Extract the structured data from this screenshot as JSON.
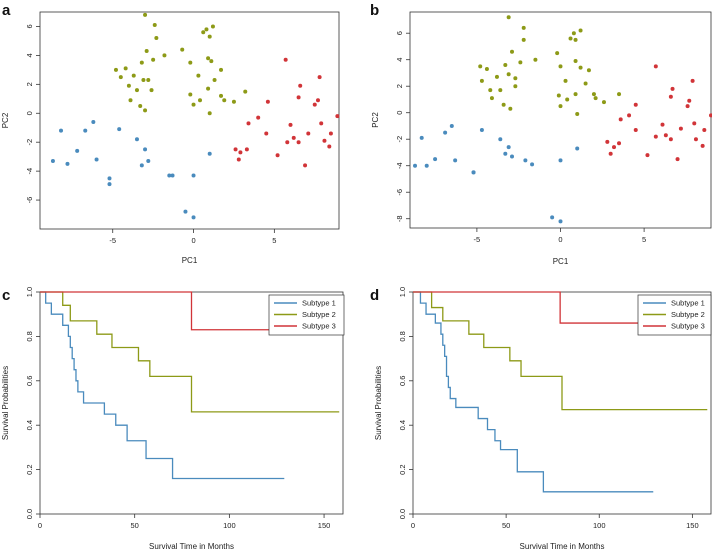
{
  "colors": {
    "subtype1": "#4a8bbd",
    "subtype2": "#8d9a17",
    "subtype3": "#d13438",
    "axis": "#333333"
  },
  "chart_data": [
    {
      "panel": "a",
      "type": "scatter",
      "xlabel": "PC1",
      "ylabel": "PC2",
      "xlim": [
        -9.5,
        9
      ],
      "ylim": [
        -8,
        7
      ],
      "xticks": [
        -5,
        0,
        5
      ],
      "yticks": [
        -6,
        -4,
        -2,
        0,
        2,
        4,
        6
      ],
      "series": [
        {
          "name": "Subtype 1",
          "color_key": "subtype1",
          "points": [
            [
              -8.7,
              -3.3
            ],
            [
              -8.2,
              -1.2
            ],
            [
              -7.8,
              -3.5
            ],
            [
              -7.2,
              -2.6
            ],
            [
              -6.7,
              -1.2
            ],
            [
              -6.2,
              -0.6
            ],
            [
              -6,
              -3.2
            ],
            [
              -5.2,
              -4.5
            ],
            [
              -5.2,
              -4.9
            ],
            [
              -4.6,
              -1.1
            ],
            [
              -3.5,
              -1.8
            ],
            [
              -3.2,
              -3.6
            ],
            [
              -3,
              -2.5
            ],
            [
              -2.8,
              -3.3
            ],
            [
              -1.5,
              -4.3
            ],
            [
              -1.3,
              -4.3
            ],
            [
              -0.5,
              -6.8
            ],
            [
              0,
              -7.2
            ],
            [
              0,
              -4.3
            ],
            [
              1,
              -2.8
            ]
          ]
        },
        {
          "name": "Subtype 2",
          "color_key": "subtype2",
          "points": [
            [
              -4.8,
              3
            ],
            [
              -4.5,
              2.5
            ],
            [
              -4.2,
              3.1
            ],
            [
              -4,
              1.9
            ],
            [
              -3.9,
              0.9
            ],
            [
              -3.7,
              2.6
            ],
            [
              -3.5,
              1.6
            ],
            [
              -3.3,
              0.5
            ],
            [
              -3.2,
              3.5
            ],
            [
              -3.1,
              2.3
            ],
            [
              -3,
              6.8
            ],
            [
              -3,
              0.2
            ],
            [
              -2.9,
              4.3
            ],
            [
              -2.8,
              2.3
            ],
            [
              -2.6,
              1.6
            ],
            [
              -2.5,
              3.7
            ],
            [
              -2.4,
              6.1
            ],
            [
              -2.3,
              5.2
            ],
            [
              -1.8,
              4
            ],
            [
              -0.7,
              4.4
            ],
            [
              -0.2,
              3.5
            ],
            [
              -0.2,
              1.3
            ],
            [
              0,
              0.6
            ],
            [
              0.3,
              2.6
            ],
            [
              0.4,
              0.9
            ],
            [
              0.6,
              5.6
            ],
            [
              0.8,
              5.8
            ],
            [
              0.9,
              3.8
            ],
            [
              0.9,
              1.7
            ],
            [
              1,
              5.3
            ],
            [
              1,
              0
            ],
            [
              1.1,
              3.6
            ],
            [
              1.2,
              6
            ],
            [
              1.3,
              2.3
            ],
            [
              1.7,
              3
            ],
            [
              1.7,
              1.2
            ],
            [
              1.9,
              0.9
            ],
            [
              2.5,
              0.8
            ],
            [
              3.2,
              1.5
            ]
          ]
        },
        {
          "name": "Subtype 3",
          "color_key": "subtype3",
          "points": [
            [
              2.6,
              -2.5
            ],
            [
              2.8,
              -3.2
            ],
            [
              2.9,
              -2.7
            ],
            [
              3.3,
              -2.5
            ],
            [
              3.4,
              -0.7
            ],
            [
              4,
              -0.3
            ],
            [
              4.6,
              0.8
            ],
            [
              4.5,
              -1.4
            ],
            [
              5.2,
              -2.9
            ],
            [
              5.7,
              3.7
            ],
            [
              5.8,
              -2
            ],
            [
              6,
              -0.8
            ],
            [
              6.2,
              -1.7
            ],
            [
              6.5,
              1.1
            ],
            [
              6.5,
              -2
            ],
            [
              6.6,
              1.9
            ],
            [
              6.9,
              -3.6
            ],
            [
              7.1,
              -1.4
            ],
            [
              7.5,
              0.6
            ],
            [
              7.7,
              0.9
            ],
            [
              7.8,
              2.5
            ],
            [
              7.9,
              -0.7
            ],
            [
              8.1,
              -1.9
            ],
            [
              8.4,
              -2.3
            ],
            [
              8.5,
              -1.4
            ],
            [
              8.9,
              -0.2
            ]
          ]
        }
      ]
    },
    {
      "panel": "b",
      "type": "scatter",
      "xlabel": "PC1",
      "ylabel": "PC2",
      "xlim": [
        -9,
        9
      ],
      "ylim": [
        -8.7,
        7.6
      ],
      "xticks": [
        -5,
        0,
        5
      ],
      "yticks": [
        -8,
        -6,
        -4,
        -2,
        0,
        2,
        4,
        6
      ],
      "series": [
        {
          "name": "Subtype 1",
          "color_key": "subtype1",
          "points": [
            [
              -8.7,
              -4
            ],
            [
              -8.3,
              -1.9
            ],
            [
              -8,
              -4
            ],
            [
              -7.5,
              -3.5
            ],
            [
              -6.9,
              -1.5
            ],
            [
              -6.5,
              -1
            ],
            [
              -6.3,
              -3.6
            ],
            [
              -5.2,
              -4.5
            ],
            [
              -5.2,
              -4.5
            ],
            [
              -4.7,
              -1.3
            ],
            [
              -3.6,
              -2
            ],
            [
              -3.3,
              -3.1
            ],
            [
              -3.1,
              -2.6
            ],
            [
              -2.9,
              -3.3
            ],
            [
              -2.1,
              -3.6
            ],
            [
              -1.7,
              -3.9
            ],
            [
              -0.5,
              -7.9
            ],
            [
              0,
              -8.2
            ],
            [
              0,
              -3.6
            ],
            [
              1,
              -2.7
            ]
          ]
        },
        {
          "name": "Subtype 2",
          "color_key": "subtype2",
          "points": [
            [
              -4.8,
              3.5
            ],
            [
              -4.7,
              2.4
            ],
            [
              -4.4,
              3.3
            ],
            [
              -4.2,
              1.7
            ],
            [
              -4.1,
              1.1
            ],
            [
              -3.8,
              2.7
            ],
            [
              -3.6,
              1.7
            ],
            [
              -3.4,
              0.6
            ],
            [
              -3.3,
              3.6
            ],
            [
              -3.1,
              2.9
            ],
            [
              -3.1,
              7.2
            ],
            [
              -3,
              0.3
            ],
            [
              -2.9,
              4.6
            ],
            [
              -2.7,
              2.6
            ],
            [
              -2.7,
              2
            ],
            [
              -2.4,
              3.8
            ],
            [
              -2.2,
              6.4
            ],
            [
              -2.2,
              5.5
            ],
            [
              -1.5,
              4
            ],
            [
              -0.2,
              4.5
            ],
            [
              0,
              3.5
            ],
            [
              -0.1,
              1.3
            ],
            [
              0,
              0.5
            ],
            [
              0.3,
              2.4
            ],
            [
              0.4,
              1
            ],
            [
              0.6,
              5.6
            ],
            [
              0.8,
              6
            ],
            [
              0.9,
              3.9
            ],
            [
              0.9,
              1.4
            ],
            [
              0.9,
              5.5
            ],
            [
              1,
              -0.1
            ],
            [
              1.2,
              3.4
            ],
            [
              1.2,
              6.2
            ],
            [
              1.5,
              2.2
            ],
            [
              1.7,
              3.2
            ],
            [
              2,
              1.4
            ],
            [
              2.1,
              1.1
            ],
            [
              2.6,
              0.8
            ],
            [
              3.5,
              1.4
            ]
          ]
        },
        {
          "name": "Subtype 3",
          "color_key": "subtype3",
          "points": [
            [
              2.8,
              -2.2
            ],
            [
              3,
              -3.1
            ],
            [
              3.2,
              -2.6
            ],
            [
              3.5,
              -2.3
            ],
            [
              3.6,
              -0.5
            ],
            [
              4.1,
              -0.2
            ],
            [
              4.5,
              0.6
            ],
            [
              4.5,
              -1.3
            ],
            [
              5.2,
              -3.2
            ],
            [
              5.7,
              3.5
            ],
            [
              5.7,
              -1.8
            ],
            [
              6.1,
              -0.9
            ],
            [
              6.3,
              -1.7
            ],
            [
              6.6,
              1.2
            ],
            [
              6.6,
              -2
            ],
            [
              6.7,
              1.8
            ],
            [
              7,
              -3.5
            ],
            [
              7.2,
              -1.2
            ],
            [
              7.6,
              0.5
            ],
            [
              7.7,
              0.9
            ],
            [
              7.9,
              2.4
            ],
            [
              8,
              -0.8
            ],
            [
              8.1,
              -2
            ],
            [
              8.5,
              -2.5
            ],
            [
              8.6,
              -1.3
            ],
            [
              9,
              -0.2
            ]
          ]
        }
      ]
    },
    {
      "panel": "c",
      "type": "line",
      "subtype": "kaplan-meier",
      "xlabel": "Survival Time in Months",
      "ylabel": "Survival Probabilities",
      "xlim": [
        0,
        160
      ],
      "ylim": [
        0,
        1
      ],
      "xticks": [
        0,
        50,
        100,
        150
      ],
      "yticks": [
        0.0,
        0.2,
        0.4,
        0.6,
        0.8,
        1.0
      ],
      "legend": [
        "Subtype 1",
        "Subtype 2",
        "Subtype 3"
      ],
      "series": [
        {
          "name": "Subtype 1",
          "color_key": "subtype1",
          "steps": [
            [
              0,
              1
            ],
            [
              3,
              0.95
            ],
            [
              6,
              0.9
            ],
            [
              12,
              0.85
            ],
            [
              15,
              0.8
            ],
            [
              16,
              0.75
            ],
            [
              17,
              0.7
            ],
            [
              18,
              0.65
            ],
            [
              19,
              0.6
            ],
            [
              20,
              0.55
            ],
            [
              23,
              0.5
            ],
            [
              34,
              0.45
            ],
            [
              40,
              0.4
            ],
            [
              46,
              0.33
            ],
            [
              56,
              0.25
            ],
            [
              70,
              0.16
            ],
            [
              129,
              0.16
            ]
          ]
        },
        {
          "name": "Subtype 2",
          "color_key": "subtype2",
          "steps": [
            [
              0,
              1
            ],
            [
              12,
              0.94
            ],
            [
              16,
              0.87
            ],
            [
              30,
              0.81
            ],
            [
              38,
              0.75
            ],
            [
              52,
              0.69
            ],
            [
              58,
              0.62
            ],
            [
              80,
              0.46
            ],
            [
              158,
              0.46
            ]
          ]
        },
        {
          "name": "Subtype 3",
          "color_key": "subtype3",
          "steps": [
            [
              0,
              1
            ],
            [
              80,
              0.83
            ],
            [
              124,
              0.83
            ]
          ]
        }
      ]
    },
    {
      "panel": "d",
      "type": "line",
      "subtype": "kaplan-meier",
      "xlabel": "Survival Time in Months",
      "ylabel": "Survival Probabilities",
      "xlim": [
        0,
        160
      ],
      "ylim": [
        0,
        1
      ],
      "xticks": [
        0,
        50,
        100,
        150
      ],
      "yticks": [
        0.0,
        0.2,
        0.4,
        0.6,
        0.8,
        1.0
      ],
      "legend": [
        "Subtype 1",
        "Subtype 2",
        "Subtype 3"
      ],
      "series": [
        {
          "name": "Subtype 1",
          "color_key": "subtype1",
          "steps": [
            [
              0,
              1
            ],
            [
              4,
              0.95
            ],
            [
              7,
              0.9
            ],
            [
              12,
              0.86
            ],
            [
              15,
              0.81
            ],
            [
              16,
              0.76
            ],
            [
              17,
              0.71
            ],
            [
              18,
              0.62
            ],
            [
              19,
              0.57
            ],
            [
              20,
              0.52
            ],
            [
              23,
              0.48
            ],
            [
              35,
              0.43
            ],
            [
              40,
              0.38
            ],
            [
              44,
              0.33
            ],
            [
              47,
              0.29
            ],
            [
              56,
              0.19
            ],
            [
              70,
              0.1
            ],
            [
              129,
              0.1
            ]
          ]
        },
        {
          "name": "Subtype 2",
          "color_key": "subtype2",
          "steps": [
            [
              0,
              1
            ],
            [
              10,
              0.93
            ],
            [
              16,
              0.87
            ],
            [
              30,
              0.81
            ],
            [
              38,
              0.75
            ],
            [
              52,
              0.69
            ],
            [
              58,
              0.62
            ],
            [
              80,
              0.47
            ],
            [
              158,
              0.47
            ]
          ]
        },
        {
          "name": "Subtype 3",
          "color_key": "subtype3",
          "steps": [
            [
              0,
              1
            ],
            [
              79,
              0.86
            ],
            [
              130,
              0.86
            ]
          ]
        }
      ]
    }
  ]
}
